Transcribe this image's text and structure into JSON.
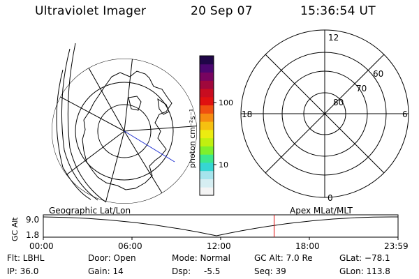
{
  "header": {
    "instrument": "Ultraviolet Imager",
    "date": "20 Sep 07",
    "time": "15:36:54 UT"
  },
  "left_panel": {
    "caption": "Geographic Lat/Lon"
  },
  "right_panel": {
    "caption": "Apex MLat/MLT",
    "mlt_labels": {
      "top": "12",
      "left": "18",
      "right": "6",
      "bottom": "0"
    },
    "lat_labels": [
      "60",
      "70",
      "80"
    ]
  },
  "colorbar": {
    "unit_label": "photon cm⁻²s⁻¹",
    "ticks": [
      "100",
      "10"
    ],
    "colors": [
      "#f4f4f4",
      "#d6eef2",
      "#a6e4ec",
      "#36d6d2",
      "#3ce88c",
      "#7ef02c",
      "#c0f010",
      "#ecec10",
      "#f6c010",
      "#f68c10",
      "#f05010",
      "#e01010",
      "#c80c20",
      "#a0083c",
      "#780460",
      "#4c0670",
      "#200648"
    ]
  },
  "timeline": {
    "y_axis_label": "GC Alt",
    "y_ticks": [
      "9.0",
      "1.8"
    ],
    "x_ticks": [
      "00:00",
      "06:00",
      "12:00",
      "18:00",
      "23:59"
    ],
    "current_time_fraction": 0.6506,
    "marker_color": "#e00000"
  },
  "status": {
    "flt": "Flt: LBHL",
    "ip": "IP: 36.0",
    "door": "Door: Open",
    "gain": "Gain: 14",
    "mode": "Mode: Normal",
    "dsp_label": "Dsp:",
    "dsp_value": "-5.5",
    "gc_alt": "GC Alt: 7.0 Re",
    "seq": "Seq: 39",
    "glat": "GLat: −78.1",
    "glon": "GLon: 113.8"
  }
}
